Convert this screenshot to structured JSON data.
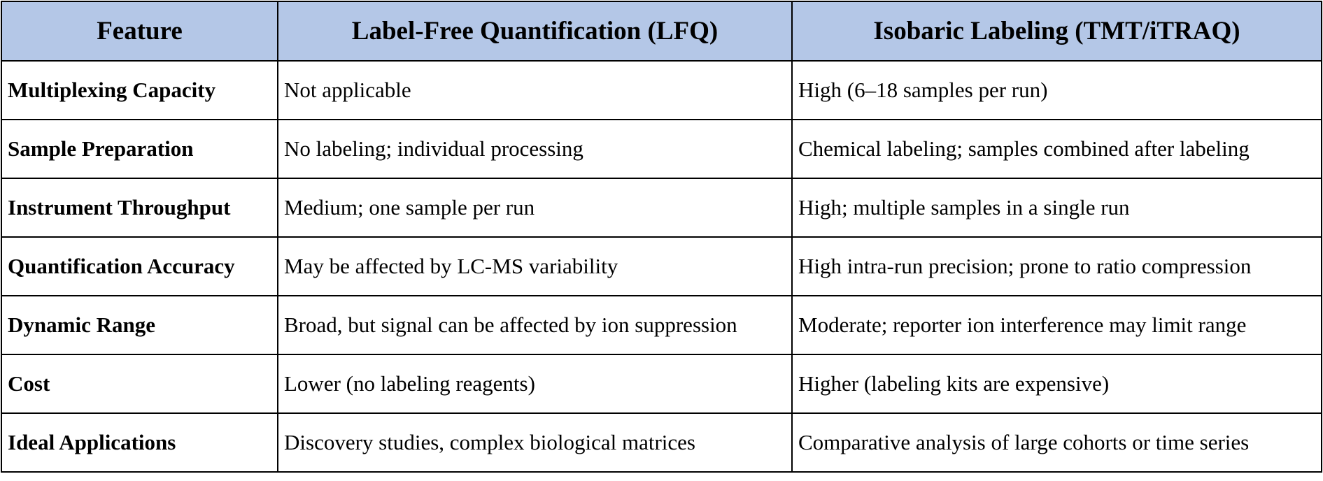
{
  "table": {
    "header_bg": "#b4c7e7",
    "border_color": "#000000",
    "headers": [
      "Feature",
      "Label-Free Quantification (LFQ)",
      "Isobaric Labeling (TMT/iTRAQ)"
    ],
    "rows": [
      {
        "feature": "Multiplexing Capacity",
        "lfq": "Not applicable",
        "isobaric": "High (6–18 samples per run)"
      },
      {
        "feature": "Sample Preparation",
        "lfq": "No labeling; individual processing",
        "isobaric": "Chemical labeling; samples combined after labeling"
      },
      {
        "feature": "Instrument Throughput",
        "lfq": "Medium; one sample per run",
        "isobaric": "High; multiple samples in a single run"
      },
      {
        "feature": "Quantification Accuracy",
        "lfq": "May be affected by LC-MS variability",
        "isobaric": "High intra-run precision; prone to ratio compression"
      },
      {
        "feature": "Dynamic Range",
        "lfq": "Broad, but signal can be affected by ion suppression",
        "isobaric": "Moderate; reporter ion interference may limit range"
      },
      {
        "feature": "Cost",
        "lfq": "Lower (no labeling reagents)",
        "isobaric": "Higher (labeling kits are expensive)"
      },
      {
        "feature": "Ideal Applications",
        "lfq": "Discovery studies, complex biological matrices",
        "isobaric": "Comparative analysis of large cohorts or time series"
      }
    ]
  }
}
